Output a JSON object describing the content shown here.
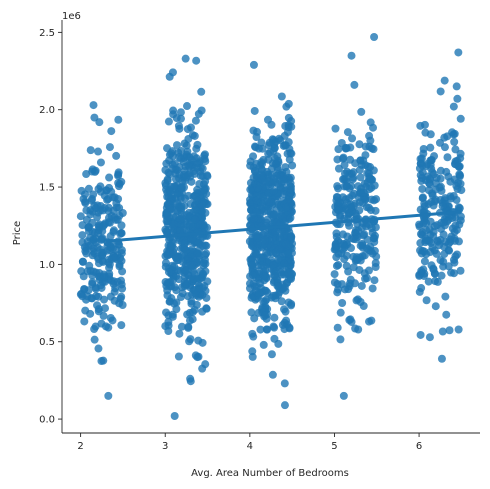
{
  "chart_data": {
    "type": "scatter",
    "xlabel": "Avg. Area Number of Bedrooms",
    "ylabel": "Price",
    "y_offset_label": "1e6",
    "xlim": [
      1.78,
      6.72
    ],
    "ylim": [
      -0.09,
      2.58
    ],
    "x_ticks": [
      2,
      3,
      4,
      5,
      6
    ],
    "y_ticks": [
      0.0,
      0.5,
      1.0,
      1.5,
      2.0,
      2.5
    ],
    "y_tick_labels": [
      "0.0",
      "0.5",
      "1.0",
      "1.5",
      "2.0",
      "2.5"
    ],
    "color": "#1f77b4",
    "point_alpha": 0.8,
    "clusters": [
      {
        "x_min": 2.0,
        "x_max": 2.5,
        "count": 240,
        "y_mean": 1.13,
        "y_sd": 0.31,
        "y_min": 0.15,
        "y_max": 2.03
      },
      {
        "x_min": 3.0,
        "x_max": 3.5,
        "count": 520,
        "y_mean": 1.2,
        "y_sd": 0.33,
        "y_min": 0.02,
        "y_max": 2.33
      },
      {
        "x_min": 4.0,
        "x_max": 4.5,
        "count": 600,
        "y_mean": 1.22,
        "y_sd": 0.33,
        "y_min": 0.09,
        "y_max": 2.29
      },
      {
        "x_min": 5.0,
        "x_max": 5.5,
        "count": 260,
        "y_mean": 1.28,
        "y_sd": 0.32,
        "y_min": 0.15,
        "y_max": 2.47
      },
      {
        "x_min": 6.0,
        "x_max": 6.5,
        "count": 230,
        "y_mean": 1.32,
        "y_sd": 0.32,
        "y_min": 0.39,
        "y_max": 2.37
      }
    ],
    "regression_line": {
      "x": [
        2.3,
        6.5
      ],
      "y": [
        1.15,
        1.34
      ]
    },
    "spines": [
      "left",
      "bottom"
    ],
    "grid": false,
    "legend": false
  }
}
